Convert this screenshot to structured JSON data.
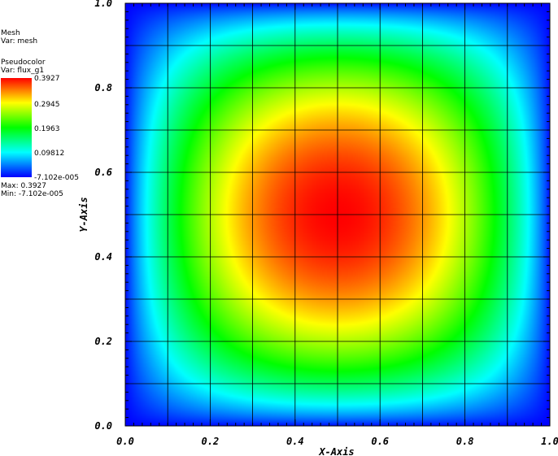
{
  "mesh_legend": {
    "title": "Mesh",
    "var": "Var: mesh"
  },
  "pseudocolor_legend": {
    "title": "Pseudocolor",
    "var": "Var: flux_g1",
    "labels": [
      "0.3927",
      "0.2945",
      "0.1963",
      "0.09812",
      "-7.102e-005"
    ],
    "max": "Max:  0.3927",
    "min": "Min: -7.102e-005"
  },
  "chart_data": {
    "type": "heatmap",
    "variable": "flux_g1",
    "xlabel": "X-Axis",
    "ylabel": "Y-Axis",
    "xlim": [
      0.0,
      1.0
    ],
    "ylim": [
      0.0,
      1.0
    ],
    "xticks": [
      "0.0",
      "0.2",
      "0.4",
      "0.6",
      "0.8",
      "1.0"
    ],
    "yticks": [
      "0.0",
      "0.2",
      "0.4",
      "0.6",
      "0.8",
      "1.0"
    ],
    "xtick_values": [
      0.0,
      0.2,
      0.4,
      0.6,
      0.8,
      1.0
    ],
    "ytick_values": [
      0.0,
      0.2,
      0.4,
      0.6,
      0.8,
      1.0
    ],
    "mesh_lines": [
      0.1,
      0.2,
      0.3,
      0.4,
      0.5,
      0.6,
      0.7,
      0.8,
      0.9
    ],
    "value_min": -7.102e-05,
    "value_max": 0.3927,
    "field": "sin(pi*x)*sin(pi*y) scaled, peak 0.3927 at (0.5, 0.5)",
    "colormap": [
      "#0000ff",
      "#00ffff",
      "#00ff00",
      "#ffff00",
      "#ff0000"
    ]
  }
}
